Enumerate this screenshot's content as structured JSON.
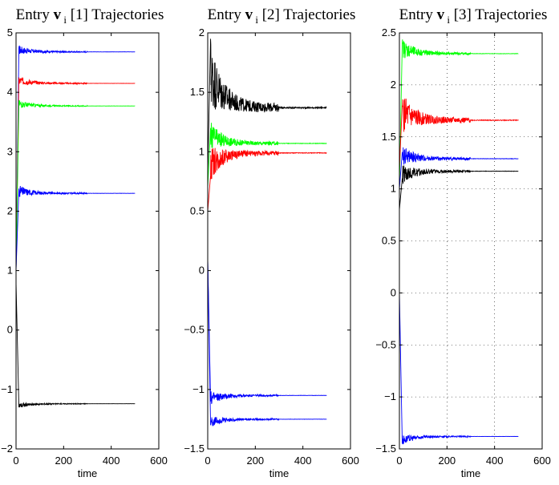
{
  "figure": {
    "colors": {
      "blue": "#0000ff",
      "red": "#ff0000",
      "green": "#00ff00",
      "black": "#000000"
    }
  },
  "chart_data": [
    {
      "type": "line",
      "title": {
        "prefix": "Entry",
        "bold": "v",
        "sub": "i",
        "suffix": "[1] Trajectories"
      },
      "xlabel": "time",
      "ylabel": "",
      "xlim": [
        0,
        600
      ],
      "ylim": [
        -2,
        5
      ],
      "xticks": [
        0,
        200,
        400,
        600
      ],
      "yticks": [
        -2,
        -1,
        0,
        1,
        2,
        3,
        4,
        5
      ],
      "grid": false,
      "series": [
        {
          "name": "blue-high",
          "color": "#0000ff",
          "start": 1.0,
          "final": 4.68,
          "peak": 4.75,
          "osc": 0.08
        },
        {
          "name": "red",
          "color": "#ff0000",
          "start": 1.0,
          "final": 4.15,
          "peak": 4.25,
          "osc": 0.08
        },
        {
          "name": "green",
          "color": "#00ff00",
          "start": 1.0,
          "final": 3.77,
          "peak": 3.85,
          "osc": 0.07
        },
        {
          "name": "blue-low",
          "color": "#0000ff",
          "start": 1.0,
          "final": 2.3,
          "peak": 2.38,
          "osc": 0.1
        },
        {
          "name": "black",
          "color": "#000000",
          "start": 0.8,
          "final": -1.24,
          "peak": -1.3,
          "osc": 0.05
        }
      ]
    },
    {
      "type": "line",
      "title": {
        "prefix": "Entry",
        "bold": "v",
        "sub": "i",
        "suffix": "[2] Trajectories"
      },
      "xlabel": "time",
      "ylabel": "",
      "xlim": [
        0,
        600
      ],
      "ylim": [
        -1.5,
        2
      ],
      "xticks": [
        0,
        200,
        400,
        600
      ],
      "yticks": [
        -1.5,
        -1,
        -0.5,
        0,
        0.5,
        1,
        1.5,
        2
      ],
      "grid": false,
      "series": [
        {
          "name": "black",
          "color": "#000000",
          "start": 0.8,
          "final": 1.37,
          "peak": 1.95,
          "osc": 0.3
        },
        {
          "name": "green",
          "color": "#00ff00",
          "start": 0.7,
          "final": 1.07,
          "peak": 1.2,
          "osc": 0.12
        },
        {
          "name": "red",
          "color": "#ff0000",
          "start": 0.5,
          "final": 0.99,
          "peak": 0.8,
          "osc": 0.15
        },
        {
          "name": "blue-a",
          "color": "#0000ff",
          "start": 0.1,
          "final": -1.05,
          "peak": -1.1,
          "osc": 0.06
        },
        {
          "name": "blue-b",
          "color": "#0000ff",
          "start": 0.1,
          "final": -1.25,
          "peak": -1.3,
          "osc": 0.05
        }
      ]
    },
    {
      "type": "line",
      "title": {
        "prefix": "Entry",
        "bold": "v",
        "sub": "i",
        "suffix": "[3] Trajectories"
      },
      "xlabel": "time",
      "ylabel": "",
      "xlim": [
        0,
        600
      ],
      "ylim": [
        -1.5,
        2.5
      ],
      "xticks": [
        0,
        200,
        400,
        600
      ],
      "yticks": [
        -1.5,
        -1,
        -0.5,
        0,
        0.5,
        1,
        1.5,
        2,
        2.5
      ],
      "grid": true,
      "series": [
        {
          "name": "green",
          "color": "#00ff00",
          "start": 1.0,
          "final": 2.3,
          "peak": 2.4,
          "osc": 0.1
        },
        {
          "name": "red",
          "color": "#ff0000",
          "start": 1.2,
          "final": 1.66,
          "peak": 1.8,
          "osc": 0.2
        },
        {
          "name": "blue-a",
          "color": "#0000ff",
          "start": 1.0,
          "final": 1.29,
          "peak": 1.35,
          "osc": 0.1
        },
        {
          "name": "black",
          "color": "#000000",
          "start": 0.8,
          "final": 1.17,
          "peak": 1.1,
          "osc": 0.1
        },
        {
          "name": "blue-b",
          "color": "#0000ff",
          "start": 0.0,
          "final": -1.38,
          "peak": -1.45,
          "osc": 0.05
        }
      ]
    }
  ]
}
